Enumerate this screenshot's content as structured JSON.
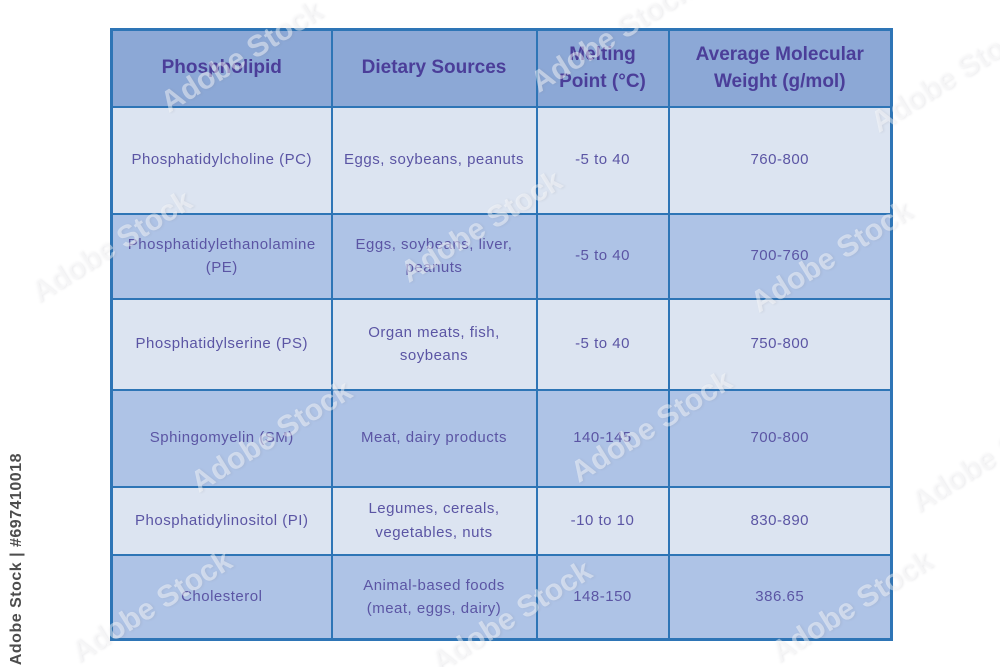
{
  "watermark": {
    "side_label": "Adobe Stock | #697410018",
    "tile_label": "Adobe Stock"
  },
  "table": {
    "headers": [
      "Phospholipid",
      "Dietary Sources",
      "Melting Point (°C)",
      "Average Molecular Weight (g/mol)"
    ],
    "rows": [
      {
        "phospholipid": "Phosphatidylcholine (PC)",
        "dietary_sources": "Eggs, soybeans, peanuts",
        "melting_point": "-5 to 40",
        "molecular_weight": "760-800"
      },
      {
        "phospholipid": "Phosphatidylethanolamine (PE)",
        "dietary_sources": "Eggs, soybeans, liver, peanuts",
        "melting_point": "-5 to 40",
        "molecular_weight": "700-760"
      },
      {
        "phospholipid": "Phosphatidylserine (PS)",
        "dietary_sources": "Organ meats, fish, soybeans",
        "melting_point": "-5 to 40",
        "molecular_weight": "750-800"
      },
      {
        "phospholipid": "Sphingomyelin (SM)",
        "dietary_sources": "Meat, dairy products",
        "melting_point": "140-145",
        "molecular_weight": "700-800"
      },
      {
        "phospholipid": "Phosphatidylinositol (PI)",
        "dietary_sources": "Legumes, cereals, vegetables, nuts",
        "melting_point": "-10 to 10",
        "molecular_weight": "830-890"
      },
      {
        "phospholipid": "Cholesterol",
        "dietary_sources": "Animal-based foods (meat, eggs, dairy)",
        "melting_point": "148-150",
        "molecular_weight": "386.65"
      }
    ]
  },
  "colors": {
    "border_blue": "#2e75b6",
    "header_bg": "#8ca8d6",
    "row_light_bg": "#dce4f1",
    "row_medium_bg": "#aec3e6",
    "header_text": "#4b3e99",
    "body_text": "#5b55a4",
    "watermark_text": "#4d4d4d"
  },
  "chart_data": {
    "type": "table",
    "title": "",
    "columns": [
      "Phospholipid",
      "Dietary Sources",
      "Melting Point (°C)",
      "Average Molecular Weight (g/mol)"
    ],
    "rows": [
      [
        "Phosphatidylcholine (PC)",
        "Eggs, soybeans, peanuts",
        "-5 to 40",
        "760-800"
      ],
      [
        "Phosphatidylethanolamine (PE)",
        "Eggs, soybeans, liver, peanuts",
        "-5 to 40",
        "700-760"
      ],
      [
        "Phosphatidylserine (PS)",
        "Organ meats, fish, soybeans",
        "-5 to 40",
        "750-800"
      ],
      [
        "Sphingomyelin (SM)",
        "Meat, dairy products",
        "140-145",
        "700-800"
      ],
      [
        "Phosphatidylinositol (PI)",
        "Legumes, cereals, vegetables, nuts",
        "-10 to 10",
        "830-890"
      ],
      [
        "Cholesterol",
        "Animal-based foods (meat, eggs, dairy)",
        "148-150",
        "386.65"
      ]
    ]
  }
}
